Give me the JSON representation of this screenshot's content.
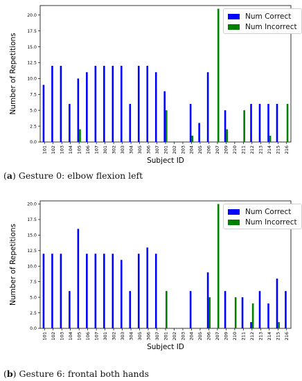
{
  "colors": {
    "correct": "#0000ff",
    "incorrect": "#008000"
  },
  "captions": [
    {
      "label": "a",
      "text": "Gesture 0: elbow flexion left"
    },
    {
      "label": "b",
      "text": "Gesture 6: frontal both hands"
    }
  ],
  "chart_data": [
    {
      "type": "bar",
      "title": "",
      "xlabel": "Subject ID",
      "ylabel": "Number of Repetitions",
      "ylim": [
        0,
        21.5
      ],
      "yticks": [
        "0.0",
        "2.5",
        "5.0",
        "7.5",
        "10.0",
        "12.5",
        "15.0",
        "17.5",
        "20.0"
      ],
      "categories": [
        "101",
        "102",
        "103",
        "104",
        "105",
        "106",
        "107",
        "301",
        "302",
        "303",
        "304",
        "305",
        "306",
        "307",
        "201",
        "202",
        "203",
        "204",
        "205",
        "206",
        "207",
        "209",
        "210",
        "211",
        "212",
        "213",
        "214",
        "215",
        "216"
      ],
      "legend_position": "top-right",
      "series": [
        {
          "name": "Num Correct",
          "values": [
            9,
            12,
            12,
            6,
            10,
            11,
            12,
            12,
            12,
            12,
            6,
            12,
            12,
            11,
            8,
            0,
            0,
            6,
            3,
            11,
            0,
            5,
            0,
            0,
            6,
            6,
            6,
            6,
            0
          ]
        },
        {
          "name": "Num Incorrect",
          "values": [
            0,
            0,
            0,
            0,
            2,
            0,
            0,
            0,
            0,
            0,
            0,
            0,
            0,
            0,
            5,
            0,
            0,
            1,
            0,
            0,
            21,
            2,
            0,
            5,
            0,
            0,
            1,
            0,
            6
          ]
        }
      ]
    },
    {
      "type": "bar",
      "title": "",
      "xlabel": "Subject ID",
      "ylabel": "Number of Repetitions",
      "ylim": [
        0,
        20.5
      ],
      "yticks": [
        "0.0",
        "2.5",
        "5.0",
        "7.5",
        "10.0",
        "12.5",
        "15.0",
        "17.5",
        "20.0"
      ],
      "categories": [
        "101",
        "102",
        "103",
        "104",
        "105",
        "106",
        "107",
        "301",
        "302",
        "303",
        "304",
        "305",
        "306",
        "307",
        "201",
        "202",
        "203",
        "204",
        "205",
        "206",
        "207",
        "209",
        "210",
        "211",
        "212",
        "213",
        "214",
        "215",
        "216"
      ],
      "legend_position": "top-right",
      "series": [
        {
          "name": "Num Correct",
          "values": [
            12,
            12,
            12,
            6,
            16,
            12,
            12,
            12,
            12,
            11,
            6,
            12,
            13,
            12,
            0,
            0,
            0,
            6,
            0,
            9,
            0,
            6,
            0,
            5,
            1,
            6,
            4,
            8,
            6
          ]
        },
        {
          "name": "Num Incorrect",
          "values": [
            0,
            0,
            0,
            0,
            0,
            0,
            0,
            0,
            0,
            0,
            0,
            0,
            0,
            0,
            6,
            0,
            0,
            0,
            0,
            5,
            20,
            0,
            5,
            0,
            4,
            0,
            0,
            1,
            0
          ]
        }
      ]
    }
  ]
}
